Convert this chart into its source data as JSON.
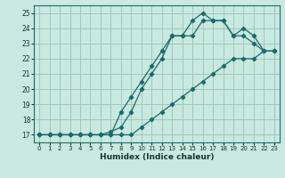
{
  "xlabel": "Humidex (Indice chaleur)",
  "bg_color": "#c8e8e0",
  "grid_color": "#a0c8c0",
  "line_color": "#1a6b6b",
  "xlim": [
    -0.5,
    23.5
  ],
  "ylim": [
    16.5,
    25.5
  ],
  "xticks": [
    0,
    1,
    2,
    3,
    4,
    5,
    6,
    7,
    8,
    9,
    10,
    11,
    12,
    13,
    14,
    15,
    16,
    17,
    18,
    19,
    20,
    21,
    22,
    23
  ],
  "yticks": [
    17,
    18,
    19,
    20,
    21,
    22,
    23,
    24,
    25
  ],
  "line1_x": [
    0,
    1,
    2,
    3,
    4,
    5,
    6,
    7,
    8,
    9,
    10,
    11,
    12,
    13,
    14,
    15,
    16,
    17,
    18,
    19,
    20,
    21,
    22,
    23
  ],
  "line1_y": [
    17,
    17,
    17,
    17,
    17,
    17,
    17,
    17.2,
    17.5,
    18.5,
    20.0,
    21.0,
    22.0,
    23.5,
    23.5,
    24.5,
    25.0,
    24.5,
    24.5,
    23.5,
    23.5,
    23.0,
    22.5,
    22.5
  ],
  "line2_x": [
    0,
    1,
    2,
    3,
    4,
    5,
    6,
    7,
    8,
    9,
    10,
    11,
    12,
    13,
    14,
    15,
    16,
    17,
    18,
    19,
    20,
    21,
    22,
    23
  ],
  "line2_y": [
    17,
    17,
    17,
    17,
    17,
    17,
    17,
    17.0,
    18.5,
    19.5,
    20.5,
    21.5,
    22.5,
    23.5,
    23.5,
    23.5,
    24.5,
    24.5,
    24.5,
    23.5,
    24.0,
    23.5,
    22.5,
    22.5
  ],
  "line3_x": [
    0,
    1,
    2,
    3,
    4,
    5,
    6,
    7,
    8,
    9,
    10,
    11,
    12,
    13,
    14,
    15,
    16,
    17,
    18,
    19,
    20,
    21,
    22,
    23
  ],
  "line3_y": [
    17,
    17,
    17,
    17,
    17,
    17,
    17,
    17,
    17,
    17,
    17.5,
    18.0,
    18.5,
    19.0,
    19.5,
    20.0,
    20.5,
    21.0,
    21.5,
    22.0,
    22.0,
    22.0,
    22.5,
    22.5
  ]
}
